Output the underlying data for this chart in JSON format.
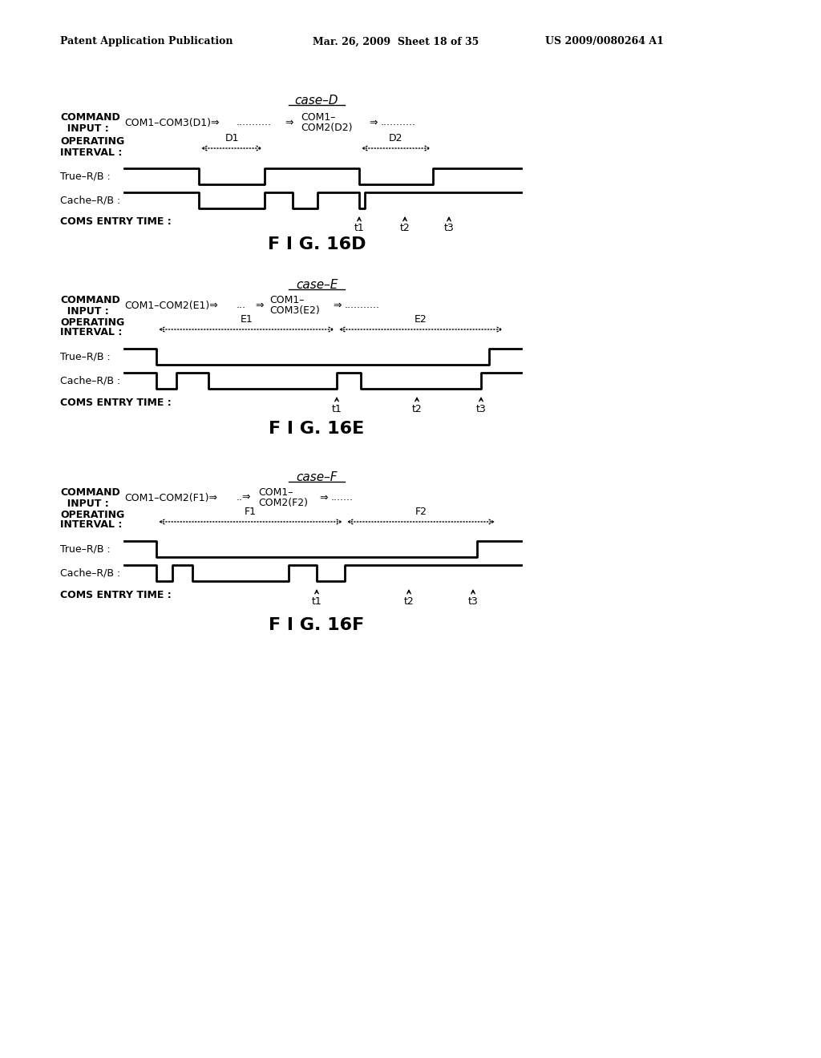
{
  "bg_color": "#ffffff",
  "header_left": "Patent Application Publication",
  "header_mid": "Mar. 26, 2009  Sheet 18 of 35",
  "header_right": "US 2009/0080264 A1",
  "diagrams": [
    {
      "case_label": "case-D",
      "fig_label": "F I G. 16D",
      "cmd_line1": "COMMAND",
      "cmd_line2": "  INPUT :",
      "cmd_text1": "COM1-COM3(D1)⇒",
      "cmd_dots1": "...........",
      "cmd_arrow1": "⇒",
      "cmd_text2": "COM1-\nCOM2(D2)",
      "cmd_arrow2": "⇒",
      "cmd_dots2": "...........",
      "op_line1": "OPERATING",
      "op_line2": "INTERVAL :",
      "interval1_label": "D1",
      "interval2_label": "D2",
      "true_rb_label": "True-R/B :",
      "cache_rb_label": "Cache-R/B :",
      "coms_label": "COMS ENTRY TIME :",
      "t_labels": [
        "t1",
        "t2",
        "t3"
      ]
    },
    {
      "case_label": "case-E",
      "fig_label": "F I G. 16E",
      "cmd_text1": "COM1-COM2(E1)⇒",
      "cmd_text2": "COM1-\nCOM3(E2)",
      "interval1_label": "E1",
      "interval2_label": "E2",
      "t_labels": [
        "t1",
        "t2",
        "t3"
      ]
    },
    {
      "case_label": "case-F",
      "fig_label": "F I G. 16F",
      "cmd_text1": "COM1-COM2(F1)⇒",
      "cmd_text2": "COM1-\nCOM2(F2)",
      "interval1_label": "F1",
      "interval2_label": "F2",
      "t_labels": [
        "t1",
        "t2",
        "t3"
      ]
    }
  ]
}
